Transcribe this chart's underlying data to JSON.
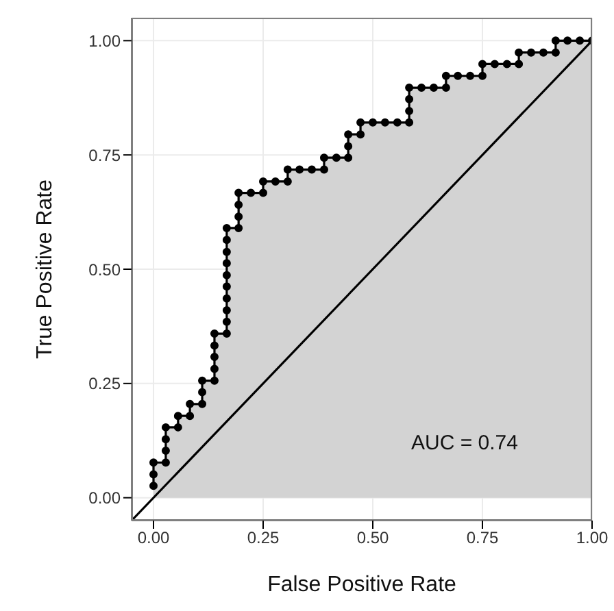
{
  "chart_data": {
    "type": "area",
    "xlabel": "False Positive Rate",
    "ylabel": "True Positive Rate",
    "xlim": [
      -0.05,
      1.0
    ],
    "ylim": [
      -0.05,
      1.05
    ],
    "xticks": [
      {
        "value": 0,
        "label": "0.00"
      },
      {
        "value": 0.25,
        "label": "0.25"
      },
      {
        "value": 0.5,
        "label": "0.50"
      },
      {
        "value": 0.75,
        "label": "0.75"
      },
      {
        "value": 1,
        "label": "1.00"
      }
    ],
    "yticks": [
      {
        "value": 0,
        "label": "0.00"
      },
      {
        "value": 0.25,
        "label": "0.25"
      },
      {
        "value": 0.5,
        "label": "0.50"
      },
      {
        "value": 0.75,
        "label": "0.75"
      },
      {
        "value": 1,
        "label": "1.00"
      }
    ],
    "grid": true,
    "line_style": "solid",
    "annotations": [
      "AUC = 0.74"
    ],
    "series": [
      {
        "color": "#000000",
        "marker": "circle",
        "x": [
          0,
          0,
          0,
          0.028,
          0.028,
          0.028,
          0.028,
          0.056,
          0.056,
          0.083,
          0.083,
          0.111,
          0.111,
          0.111,
          0.139,
          0.139,
          0.139,
          0.139,
          0.139,
          0.167,
          0.167,
          0.167,
          0.167,
          0.167,
          0.167,
          0.167,
          0.167,
          0.167,
          0.167,
          0.194,
          0.194,
          0.194,
          0.194,
          0.222,
          0.25,
          0.25,
          0.278,
          0.306,
          0.306,
          0.333,
          0.361,
          0.389,
          0.389,
          0.417,
          0.444,
          0.444,
          0.444,
          0.472,
          0.472,
          0.5,
          0.528,
          0.556,
          0.583,
          0.583,
          0.583,
          0.583,
          0.611,
          0.639,
          0.667,
          0.667,
          0.694,
          0.722,
          0.75,
          0.75,
          0.778,
          0.806,
          0.833,
          0.833,
          0.861,
          0.889,
          0.917,
          0.917,
          0.944,
          0.972,
          1
        ],
        "values": [
          0.026,
          0.051,
          0.077,
          0.077,
          0.103,
          0.128,
          0.154,
          0.154,
          0.179,
          0.179,
          0.205,
          0.205,
          0.231,
          0.256,
          0.256,
          0.282,
          0.308,
          0.333,
          0.359,
          0.359,
          0.385,
          0.41,
          0.436,
          0.462,
          0.487,
          0.513,
          0.538,
          0.564,
          0.59,
          0.59,
          0.615,
          0.641,
          0.667,
          0.667,
          0.667,
          0.692,
          0.692,
          0.692,
          0.718,
          0.718,
          0.718,
          0.718,
          0.744,
          0.744,
          0.744,
          0.769,
          0.795,
          0.795,
          0.821,
          0.821,
          0.821,
          0.821,
          0.821,
          0.846,
          0.872,
          0.897,
          0.897,
          0.897,
          0.897,
          0.923,
          0.923,
          0.923,
          0.923,
          0.949,
          0.949,
          0.949,
          0.949,
          0.974,
          0.974,
          0.974,
          0.974,
          1,
          1,
          1,
          1
        ]
      },
      {
        "type": "line",
        "color": "#000000",
        "x": [
          -0.05,
          1
        ],
        "values": [
          -0.05,
          1
        ]
      }
    ]
  }
}
